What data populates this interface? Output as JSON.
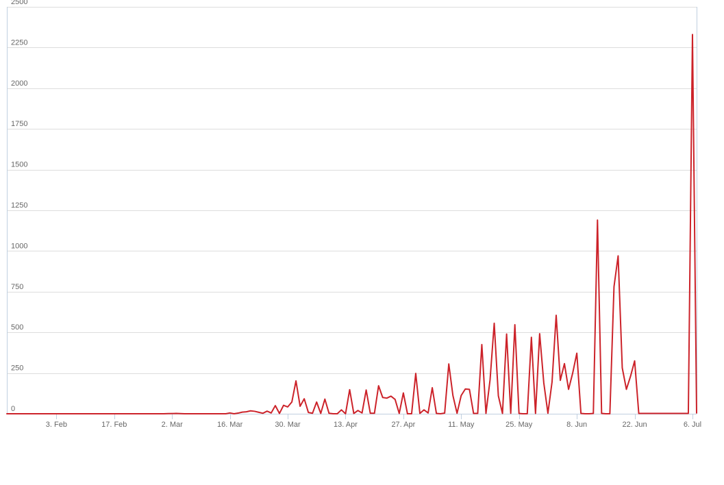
{
  "chart_data": {
    "type": "line",
    "title": "",
    "xlabel": "",
    "ylabel": "",
    "ylim": [
      0,
      2500
    ],
    "yticks": [
      0,
      250,
      500,
      750,
      1000,
      1250,
      1500,
      1750,
      2000,
      2250,
      2500
    ],
    "xlim": [
      "2020-01-22",
      "2020-07-06"
    ],
    "xticks": [
      {
        "date": "2020-02-03",
        "label": "3. Feb"
      },
      {
        "date": "2020-02-17",
        "label": "17. Feb"
      },
      {
        "date": "2020-03-02",
        "label": "2. Mar"
      },
      {
        "date": "2020-03-16",
        "label": "16. Mar"
      },
      {
        "date": "2020-03-30",
        "label": "30. Mar"
      },
      {
        "date": "2020-04-13",
        "label": "13. Apr"
      },
      {
        "date": "2020-04-27",
        "label": "27. Apr"
      },
      {
        "date": "2020-05-11",
        "label": "11. May"
      },
      {
        "date": "2020-05-25",
        "label": "25. May"
      },
      {
        "date": "2020-06-08",
        "label": "8. Jun"
      },
      {
        "date": "2020-06-22",
        "label": "22. Jun"
      },
      {
        "date": "2020-07-06",
        "label": "6. Jul"
      }
    ],
    "grid": true,
    "legend": "none",
    "series": [
      {
        "color": "#cc2229",
        "points": [
          [
            "2020-01-22",
            0
          ],
          [
            "2020-02-29",
            0
          ],
          [
            "2020-03-01",
            1
          ],
          [
            "2020-03-03",
            2
          ],
          [
            "2020-03-05",
            0
          ],
          [
            "2020-03-15",
            0
          ],
          [
            "2020-03-16",
            5
          ],
          [
            "2020-03-17",
            0
          ],
          [
            "2020-03-18",
            4
          ],
          [
            "2020-03-19",
            10
          ],
          [
            "2020-03-20",
            12
          ],
          [
            "2020-03-21",
            18
          ],
          [
            "2020-03-22",
            15
          ],
          [
            "2020-03-23",
            9
          ],
          [
            "2020-03-24",
            3
          ],
          [
            "2020-03-25",
            16
          ],
          [
            "2020-03-26",
            5
          ],
          [
            "2020-03-27",
            50
          ],
          [
            "2020-03-28",
            2
          ],
          [
            "2020-03-29",
            52
          ],
          [
            "2020-03-30",
            42
          ],
          [
            "2020-03-31",
            72
          ],
          [
            "2020-04-01",
            202
          ],
          [
            "2020-04-02",
            46
          ],
          [
            "2020-04-03",
            92
          ],
          [
            "2020-04-04",
            8
          ],
          [
            "2020-04-05",
            3
          ],
          [
            "2020-04-06",
            72
          ],
          [
            "2020-04-07",
            2
          ],
          [
            "2020-04-08",
            90
          ],
          [
            "2020-04-09",
            3
          ],
          [
            "2020-04-10",
            0
          ],
          [
            "2020-04-11",
            0
          ],
          [
            "2020-04-12",
            24
          ],
          [
            "2020-04-13",
            0
          ],
          [
            "2020-04-14",
            148
          ],
          [
            "2020-04-15",
            2
          ],
          [
            "2020-04-16",
            20
          ],
          [
            "2020-04-17",
            5
          ],
          [
            "2020-04-18",
            146
          ],
          [
            "2020-04-19",
            3
          ],
          [
            "2020-04-20",
            3
          ],
          [
            "2020-04-21",
            172
          ],
          [
            "2020-04-22",
            100
          ],
          [
            "2020-04-23",
            96
          ],
          [
            "2020-04-24",
            108
          ],
          [
            "2020-04-25",
            88
          ],
          [
            "2020-04-26",
            2
          ],
          [
            "2020-04-27",
            128
          ],
          [
            "2020-04-28",
            0
          ],
          [
            "2020-04-29",
            0
          ],
          [
            "2020-04-30",
            248
          ],
          [
            "2020-05-01",
            2
          ],
          [
            "2020-05-02",
            24
          ],
          [
            "2020-05-03",
            5
          ],
          [
            "2020-05-04",
            160
          ],
          [
            "2020-05-05",
            2
          ],
          [
            "2020-05-06",
            0
          ],
          [
            "2020-05-07",
            4
          ],
          [
            "2020-05-08",
            306
          ],
          [
            "2020-05-09",
            112
          ],
          [
            "2020-05-10",
            3
          ],
          [
            "2020-05-11",
            112
          ],
          [
            "2020-05-12",
            152
          ],
          [
            "2020-05-13",
            150
          ],
          [
            "2020-05-14",
            2
          ],
          [
            "2020-05-15",
            2
          ],
          [
            "2020-05-16",
            425
          ],
          [
            "2020-05-17",
            2
          ],
          [
            "2020-05-18",
            210
          ],
          [
            "2020-05-19",
            556
          ],
          [
            "2020-05-20",
            110
          ],
          [
            "2020-05-21",
            2
          ],
          [
            "2020-05-22",
            490
          ],
          [
            "2020-05-23",
            3
          ],
          [
            "2020-05-24",
            547
          ],
          [
            "2020-05-25",
            2
          ],
          [
            "2020-05-26",
            0
          ],
          [
            "2020-05-27",
            0
          ],
          [
            "2020-05-28",
            470
          ],
          [
            "2020-05-29",
            2
          ],
          [
            "2020-05-30",
            492
          ],
          [
            "2020-05-31",
            190
          ],
          [
            "2020-06-01",
            3
          ],
          [
            "2020-06-02",
            195
          ],
          [
            "2020-06-03",
            605
          ],
          [
            "2020-06-04",
            205
          ],
          [
            "2020-06-05",
            308
          ],
          [
            "2020-06-06",
            150
          ],
          [
            "2020-06-07",
            250
          ],
          [
            "2020-06-08",
            372
          ],
          [
            "2020-06-09",
            2
          ],
          [
            "2020-06-10",
            0
          ],
          [
            "2020-06-11",
            0
          ],
          [
            "2020-06-12",
            2
          ],
          [
            "2020-06-13",
            1190
          ],
          [
            "2020-06-14",
            2
          ],
          [
            "2020-06-15",
            0
          ],
          [
            "2020-06-16",
            0
          ],
          [
            "2020-06-17",
            780
          ],
          [
            "2020-06-18",
            970
          ],
          [
            "2020-06-19",
            282
          ],
          [
            "2020-06-20",
            150
          ],
          [
            "2020-06-21",
            230
          ],
          [
            "2020-06-22",
            325
          ],
          [
            "2020-06-23",
            2
          ],
          [
            "2020-07-05",
            2
          ],
          [
            "2020-07-06",
            2330
          ],
          [
            "2020-07-07",
            5
          ]
        ]
      }
    ]
  }
}
